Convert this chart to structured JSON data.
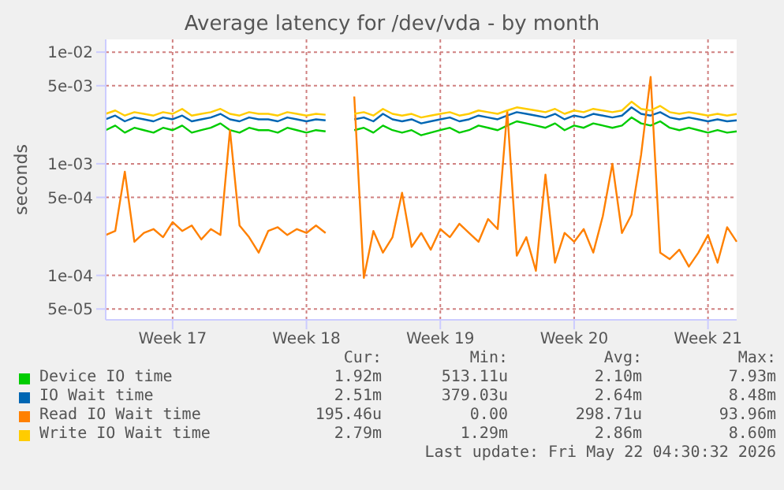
{
  "chart_data": {
    "type": "line",
    "title": "Average latency for /dev/vda - by month",
    "ylabel": "seconds",
    "categories": [
      null,
      null,
      null,
      null,
      null,
      null,
      null,
      "Week 17",
      null,
      null,
      null,
      null,
      null,
      null,
      null,
      null,
      null,
      null,
      null,
      null,
      null,
      "Week 18",
      null,
      null,
      null,
      null,
      null,
      null,
      null,
      null,
      null,
      null,
      null,
      null,
      null,
      "Week 19",
      null,
      null,
      null,
      null,
      null,
      null,
      null,
      null,
      null,
      null,
      null,
      null,
      null,
      "Week 20",
      null,
      null,
      null,
      null,
      null,
      null,
      null,
      null,
      null,
      null,
      null,
      null,
      null,
      "Week 21",
      null,
      null,
      null
    ],
    "series": [
      {
        "name": "Device IO time",
        "color": "#00cc00",
        "values": [
          0.002,
          0.0022,
          0.0019,
          0.0021,
          0.002,
          0.0019,
          0.0021,
          0.002,
          0.0022,
          0.0019,
          0.002,
          0.0021,
          0.0023,
          0.002,
          0.0019,
          0.0021,
          0.002,
          0.002,
          0.0019,
          0.0021,
          0.002,
          0.0019,
          0.002,
          0.00195,
          null,
          null,
          0.002,
          0.0021,
          0.0019,
          0.0022,
          0.002,
          0.0019,
          0.002,
          0.0018,
          0.0019,
          0.002,
          0.0021,
          0.0019,
          0.002,
          0.0022,
          0.0021,
          0.002,
          0.0022,
          0.0024,
          0.0023,
          0.0022,
          0.0021,
          0.0023,
          0.002,
          0.0022,
          0.0021,
          0.0023,
          0.0022,
          0.0021,
          0.0022,
          0.0026,
          0.0023,
          0.0022,
          0.0024,
          0.0021,
          0.002,
          0.0021,
          0.002,
          0.0019,
          0.002,
          0.0019,
          0.00195
        ]
      },
      {
        "name": "IO Wait time",
        "color": "#0066b3",
        "values": [
          0.0025,
          0.0027,
          0.0024,
          0.0026,
          0.0025,
          0.0024,
          0.0026,
          0.0025,
          0.0027,
          0.0024,
          0.0025,
          0.0026,
          0.0028,
          0.0025,
          0.0024,
          0.0026,
          0.0025,
          0.0025,
          0.0024,
          0.0026,
          0.0025,
          0.0024,
          0.0025,
          0.00245,
          null,
          null,
          0.0025,
          0.0026,
          0.0024,
          0.0028,
          0.0025,
          0.0024,
          0.0025,
          0.0023,
          0.0024,
          0.0025,
          0.0026,
          0.0024,
          0.0025,
          0.0027,
          0.0026,
          0.0025,
          0.0027,
          0.0029,
          0.0028,
          0.0027,
          0.0026,
          0.0028,
          0.0025,
          0.0027,
          0.0026,
          0.0028,
          0.0027,
          0.0026,
          0.0027,
          0.0032,
          0.0028,
          0.0027,
          0.0029,
          0.0026,
          0.0025,
          0.0026,
          0.0025,
          0.0024,
          0.0025,
          0.0024,
          0.00245
        ]
      },
      {
        "name": "Read IO Wait time",
        "color": "#ff8000",
        "values": [
          0.00023,
          0.00025,
          0.00085,
          0.0002,
          0.00024,
          0.00026,
          0.00022,
          0.0003,
          0.00025,
          0.00028,
          0.00021,
          0.00026,
          0.00023,
          0.002,
          0.00028,
          0.00022,
          0.00016,
          0.00025,
          0.00027,
          0.00023,
          0.00026,
          0.00024,
          0.00028,
          0.00024,
          null,
          null,
          0.004,
          9.5e-05,
          0.00025,
          0.00016,
          0.00022,
          0.00055,
          0.00018,
          0.00024,
          0.00017,
          0.00026,
          0.00022,
          0.00029,
          0.00024,
          0.0002,
          0.00032,
          0.00026,
          0.003,
          0.00015,
          0.00022,
          0.00011,
          0.0008,
          0.00013,
          0.00024,
          0.0002,
          0.00026,
          0.00016,
          0.00034,
          0.001,
          0.00024,
          0.00035,
          0.0012,
          0.006,
          0.00016,
          0.00014,
          0.00017,
          0.00012,
          0.00016,
          0.00023,
          0.00013,
          0.00027,
          0.0002
        ]
      },
      {
        "name": "Write IO Wait time",
        "color": "#ffcc00",
        "values": [
          0.0028,
          0.003,
          0.0027,
          0.0029,
          0.0028,
          0.0027,
          0.0029,
          0.0028,
          0.0031,
          0.0027,
          0.0028,
          0.0029,
          0.0031,
          0.0028,
          0.0027,
          0.0029,
          0.0028,
          0.0028,
          0.0027,
          0.0029,
          0.0028,
          0.0027,
          0.0028,
          0.00275,
          null,
          null,
          0.0028,
          0.0029,
          0.0027,
          0.0031,
          0.0028,
          0.0027,
          0.0028,
          0.0026,
          0.0027,
          0.0028,
          0.0029,
          0.0027,
          0.0028,
          0.003,
          0.0029,
          0.0028,
          0.003,
          0.0032,
          0.0031,
          0.003,
          0.0029,
          0.0031,
          0.0028,
          0.003,
          0.0029,
          0.0031,
          0.003,
          0.0029,
          0.003,
          0.0036,
          0.0031,
          0.003,
          0.0033,
          0.0029,
          0.0028,
          0.0029,
          0.0028,
          0.0027,
          0.0028,
          0.0027,
          0.00279
        ]
      }
    ],
    "log": "y",
    "ylim": [
      4e-05,
      0.013
    ],
    "yticks": [
      {
        "value": 5e-05,
        "label": "5e-05"
      },
      {
        "value": 0.0001,
        "label": "1e-04"
      },
      {
        "value": 0.0005,
        "label": "5e-04"
      },
      {
        "value": 0.001,
        "label": "1e-03"
      },
      {
        "value": 0.005,
        "label": "5e-03"
      },
      {
        "value": 0.01,
        "label": "1e-02"
      }
    ],
    "grid": true,
    "legend": "bottom",
    "annotations": [
      "Cur:",
      "Min:",
      "Avg:",
      "Max:",
      "1.92m",
      "513.11u",
      "2.10m",
      "7.93m",
      "2.51m",
      "379.03u",
      "2.64m",
      "8.48m",
      "195.46u",
      "0.00",
      "298.71u",
      "93.96m",
      "2.79m",
      "1.29m",
      "2.86m",
      "8.60m",
      "Last update: Fri May 22 04:30:32 2026"
    ]
  }
}
